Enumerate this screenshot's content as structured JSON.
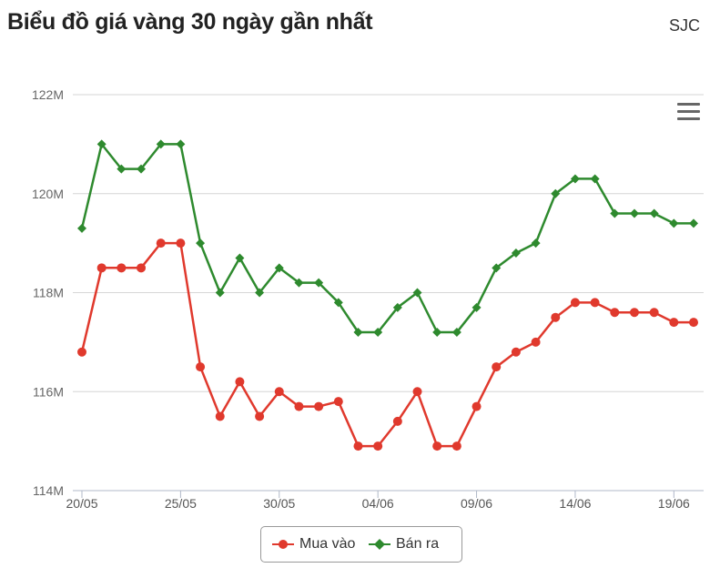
{
  "header": {
    "title": "Biểu đồ giá vàng 30 ngày gần nhất",
    "brand": "SJC"
  },
  "chart_data": {
    "type": "line",
    "ylim": [
      114,
      122
    ],
    "yticks": [
      {
        "value": 114,
        "label": "114M"
      },
      {
        "value": 116,
        "label": "116M"
      },
      {
        "value": 118,
        "label": "118M"
      },
      {
        "value": 120,
        "label": "120M"
      },
      {
        "value": 122,
        "label": "122M"
      }
    ],
    "xticks": [
      {
        "index": 0,
        "label": "20/05"
      },
      {
        "index": 5,
        "label": "25/05"
      },
      {
        "index": 10,
        "label": "30/05"
      },
      {
        "index": 15,
        "label": "04/06"
      },
      {
        "index": 20,
        "label": "09/06"
      },
      {
        "index": 25,
        "label": "14/06"
      },
      {
        "index": 30,
        "label": "19/06"
      }
    ],
    "x": [
      "20/05",
      "21/05",
      "22/05",
      "23/05",
      "24/05",
      "25/05",
      "26/05",
      "27/05",
      "28/05",
      "29/05",
      "30/05",
      "31/05",
      "01/06",
      "02/06",
      "03/06",
      "04/06",
      "05/06",
      "06/06",
      "07/06",
      "08/06",
      "09/06",
      "10/06",
      "11/06",
      "12/06",
      "13/06",
      "14/06",
      "15/06",
      "16/06",
      "17/06",
      "18/06",
      "19/06",
      "20/06"
    ],
    "series": [
      {
        "name": "Mua vào",
        "color": "#e0392d",
        "marker": "circle",
        "values": [
          116.8,
          118.5,
          118.5,
          118.5,
          119.0,
          119.0,
          116.5,
          115.5,
          116.2,
          115.5,
          116.0,
          115.7,
          115.7,
          115.8,
          114.9,
          114.9,
          115.4,
          116.0,
          114.9,
          114.9,
          115.7,
          116.5,
          116.8,
          117.0,
          117.5,
          117.8,
          117.8,
          117.6,
          117.6,
          117.6,
          117.4,
          117.4
        ]
      },
      {
        "name": "Bán ra",
        "color": "#2e8a2e",
        "marker": "diamond",
        "values": [
          119.3,
          121.0,
          120.5,
          120.5,
          121.0,
          121.0,
          119.0,
          118.0,
          118.7,
          118.0,
          118.5,
          118.2,
          118.2,
          117.8,
          117.2,
          117.2,
          117.7,
          118.0,
          117.2,
          117.2,
          117.7,
          118.5,
          118.8,
          119.0,
          120.0,
          120.3,
          120.3,
          119.6,
          119.6,
          119.6,
          119.4,
          119.4
        ]
      }
    ],
    "grid": true,
    "legend": "bottom-center"
  },
  "icons": {
    "menu": "hamburger-menu-icon"
  }
}
